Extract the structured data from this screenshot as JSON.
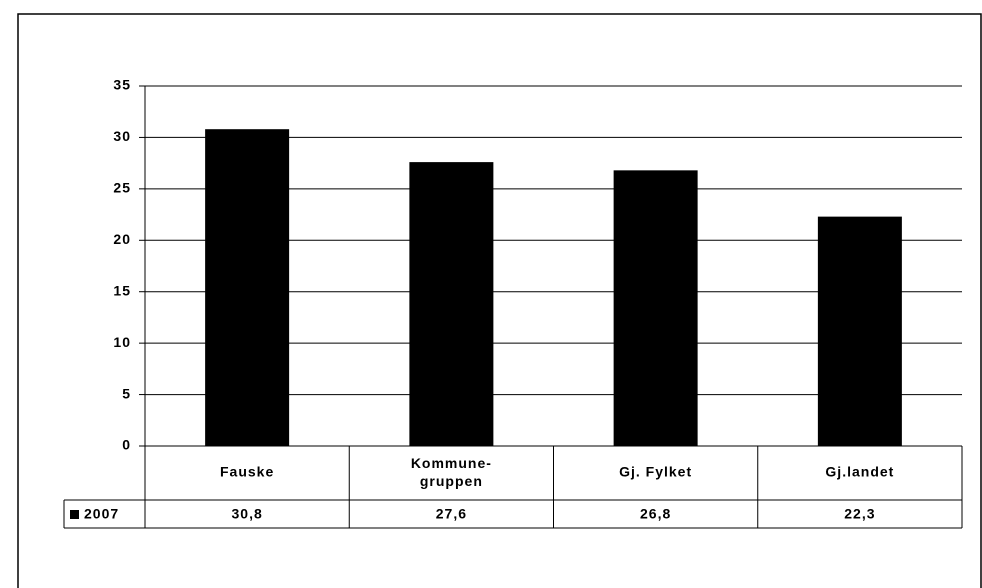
{
  "chart_data": {
    "type": "bar",
    "categories": [
      "Fauske",
      "Kommune-\ngruppen",
      "Gj. Fylket",
      "Gj.landet"
    ],
    "series": [
      {
        "name": "2007",
        "color": "#000000",
        "values": [
          30.8,
          27.6,
          26.8,
          22.3
        ],
        "value_labels": [
          "30,8",
          "27,6",
          "26,8",
          "22,3"
        ]
      }
    ],
    "ylim": [
      0,
      35
    ],
    "yticks": [
      0,
      5,
      10,
      15,
      20,
      25,
      30,
      35
    ],
    "grid": true,
    "legend": "data-table"
  }
}
